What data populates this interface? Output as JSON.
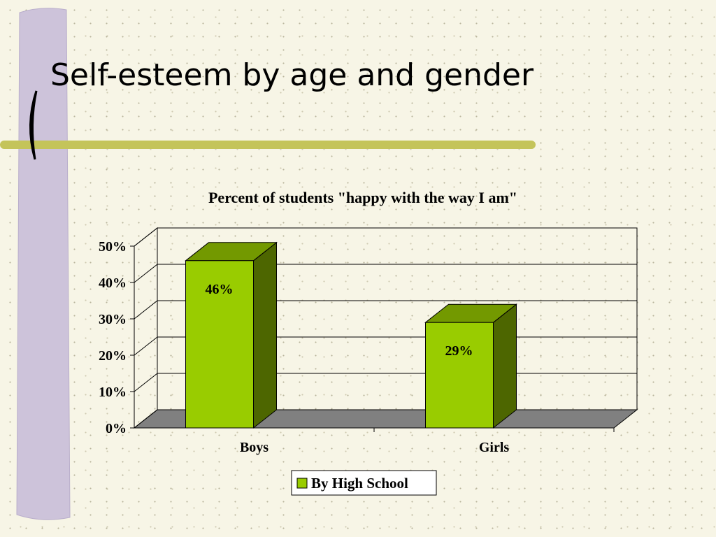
{
  "slide_title": "Self-esteem by age and gender",
  "chart_data": {
    "type": "bar3d",
    "title": "Percent of students \"happy with the way I am\"",
    "categories": [
      "Boys",
      "Girls"
    ],
    "series": [
      {
        "name": "By High School",
        "color": "#99cc00",
        "values": [
          46,
          29
        ],
        "value_labels": [
          "46%",
          "29%"
        ]
      }
    ],
    "ylim": [
      0,
      50
    ],
    "yticks": [
      {
        "value": 0,
        "label": "0%"
      },
      {
        "value": 10,
        "label": "10%"
      },
      {
        "value": 20,
        "label": "20%"
      },
      {
        "value": 30,
        "label": "30%"
      },
      {
        "value": 40,
        "label": "40%"
      },
      {
        "value": 50,
        "label": "50%"
      }
    ],
    "grid": true
  }
}
